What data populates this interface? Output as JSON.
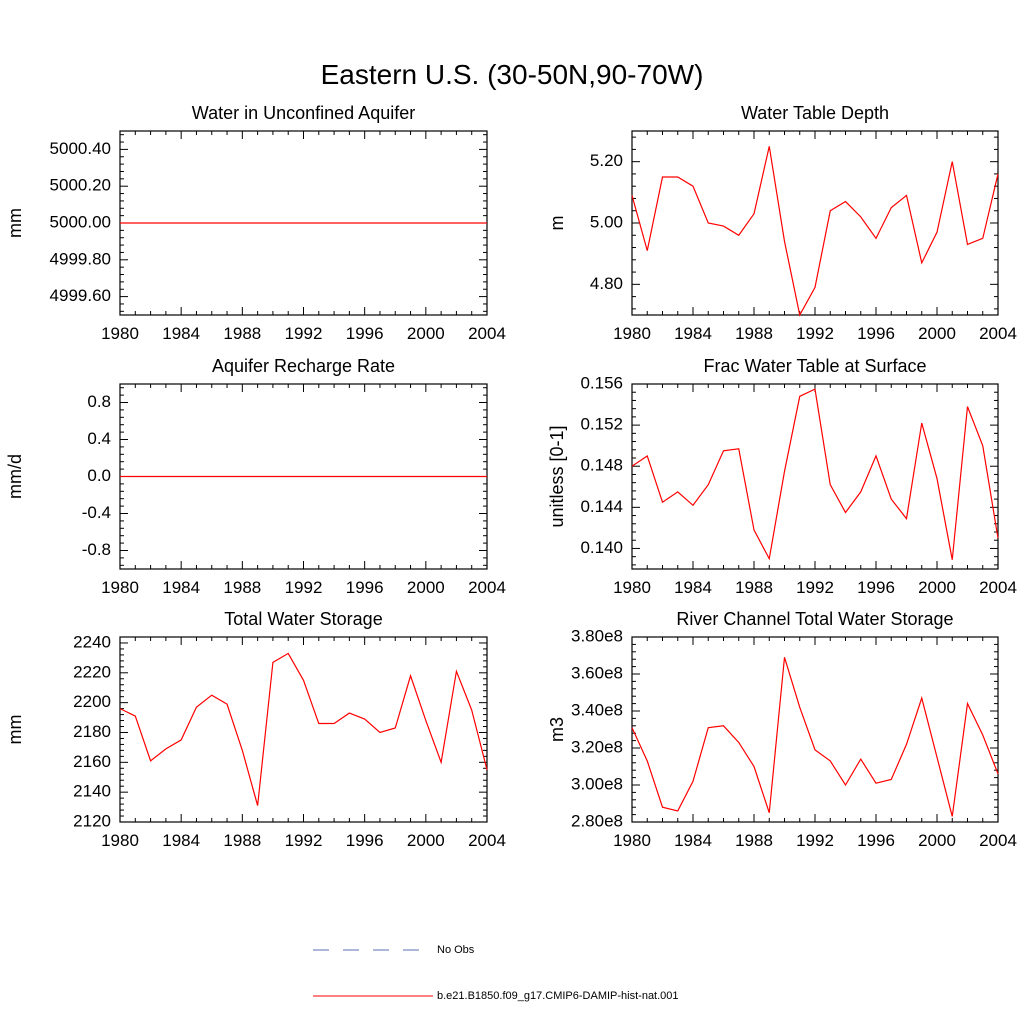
{
  "title": "Eastern U.S. (30-50N,90-70W)",
  "colors": {
    "model": "#ff0000",
    "obs": "#5b6fb5",
    "axis": "#000000"
  },
  "legend": {
    "items": [
      {
        "label": "No Obs",
        "style": "dashed",
        "color": "#5b6fb5"
      },
      {
        "label": "b.e21.B1850.f09_g17.CMIP6-DAMIP-hist-nat.001",
        "style": "solid",
        "color": "#ff0000"
      }
    ]
  },
  "chart_data": [
    {
      "type": "line",
      "title": "Water in Unconfined Aquifer",
      "ylabel": "mm",
      "xlim": [
        1980,
        2004
      ],
      "ylim": [
        4999.5,
        5000.5
      ],
      "xticks": [
        1980,
        1984,
        1988,
        1992,
        1996,
        2000,
        2004
      ],
      "xtick_labels": [
        "1980",
        "1984",
        "1988",
        "1992",
        "1996",
        "2000",
        "2004"
      ],
      "yticks": [
        4999.6,
        4999.8,
        5000.0,
        5000.2,
        5000.4
      ],
      "ytick_labels": [
        "4999.60",
        "4999.80",
        "5000.00",
        "5000.20",
        "5000.40"
      ],
      "series": [
        {
          "x": [
            1980,
            2004
          ],
          "values": [
            5000.0,
            5000.0
          ]
        }
      ]
    },
    {
      "type": "line",
      "title": "Water Table Depth",
      "ylabel": "m",
      "xlim": [
        1980,
        2004
      ],
      "ylim": [
        4.7,
        5.3
      ],
      "xticks": [
        1980,
        1984,
        1988,
        1992,
        1996,
        2000,
        2004
      ],
      "xtick_labels": [
        "1980",
        "1984",
        "1988",
        "1992",
        "1996",
        "2000",
        "2004"
      ],
      "yticks": [
        4.8,
        5.0,
        5.2
      ],
      "ytick_labels": [
        "4.80",
        "5.00",
        "5.20"
      ],
      "series": [
        {
          "x": [
            1980,
            1981,
            1982,
            1983,
            1984,
            1985,
            1986,
            1987,
            1988,
            1989,
            1990,
            1991,
            1992,
            1993,
            1994,
            1995,
            1996,
            1997,
            1998,
            1999,
            2000,
            2001,
            2002,
            2003,
            2004
          ],
          "values": [
            5.09,
            4.91,
            5.15,
            5.15,
            5.12,
            5.0,
            4.99,
            4.96,
            5.03,
            5.25,
            4.94,
            4.7,
            4.79,
            5.04,
            5.07,
            5.02,
            4.95,
            5.05,
            5.09,
            4.87,
            4.97,
            5.2,
            4.93,
            4.95,
            5.16
          ]
        }
      ]
    },
    {
      "type": "line",
      "title": "Aquifer Recharge Rate",
      "ylabel": "mm/d",
      "xlim": [
        1980,
        2004
      ],
      "ylim": [
        -1.0,
        1.0
      ],
      "xticks": [
        1980,
        1984,
        1988,
        1992,
        1996,
        2000,
        2004
      ],
      "xtick_labels": [
        "1980",
        "1984",
        "1988",
        "1992",
        "1996",
        "2000",
        "2004"
      ],
      "yticks": [
        -0.8,
        -0.4,
        0.0,
        0.4,
        0.8
      ],
      "ytick_labels": [
        "-0.8",
        "-0.4",
        "0.0",
        "0.4",
        "0.8"
      ],
      "series": [
        {
          "x": [
            1980,
            2004
          ],
          "values": [
            0.0,
            0.0
          ]
        }
      ]
    },
    {
      "type": "line",
      "title": "Frac Water Table at Surface",
      "ylabel": "unitless [0-1]",
      "xlim": [
        1980,
        2004
      ],
      "ylim": [
        0.138,
        0.156
      ],
      "xticks": [
        1980,
        1984,
        1988,
        1992,
        1996,
        2000,
        2004
      ],
      "xtick_labels": [
        "1980",
        "1984",
        "1988",
        "1992",
        "1996",
        "2000",
        "2004"
      ],
      "yticks": [
        0.14,
        0.144,
        0.148,
        0.152,
        0.156
      ],
      "ytick_labels": [
        "0.140",
        "0.144",
        "0.148",
        "0.152",
        "0.156"
      ],
      "series": [
        {
          "x": [
            1980,
            1981,
            1982,
            1983,
            1984,
            1985,
            1986,
            1987,
            1988,
            1989,
            1990,
            1991,
            1992,
            1993,
            1994,
            1995,
            1996,
            1997,
            1998,
            1999,
            2000,
            2001,
            2002,
            2003,
            2004
          ],
          "values": [
            0.148,
            0.149,
            0.1445,
            0.1455,
            0.1442,
            0.1462,
            0.1495,
            0.1497,
            0.1418,
            0.139,
            0.1475,
            0.1548,
            0.1555,
            0.1462,
            0.1435,
            0.1455,
            0.149,
            0.1448,
            0.1429,
            0.1522,
            0.1468,
            0.1389,
            0.1538,
            0.15,
            0.141
          ]
        }
      ]
    },
    {
      "type": "line",
      "title": "Total Water Storage",
      "ylabel": "mm",
      "xlim": [
        1980,
        2004
      ],
      "ylim": [
        2120,
        2244
      ],
      "xticks": [
        1980,
        1984,
        1988,
        1992,
        1996,
        2000,
        2004
      ],
      "xtick_labels": [
        "1980",
        "1984",
        "1988",
        "1992",
        "1996",
        "2000",
        "2004"
      ],
      "yticks": [
        2120,
        2140,
        2160,
        2180,
        2200,
        2220,
        2240
      ],
      "ytick_labels": [
        "2120",
        "2140",
        "2160",
        "2180",
        "2200",
        "2220",
        "2240"
      ],
      "series": [
        {
          "x": [
            1980,
            1981,
            1982,
            1983,
            1984,
            1985,
            1986,
            1987,
            1988,
            1989,
            1990,
            1991,
            1992,
            1993,
            1994,
            1995,
            1996,
            1997,
            1998,
            1999,
            2000,
            2001,
            2002,
            2003,
            2004
          ],
          "values": [
            2196,
            2191,
            2161,
            2169,
            2175,
            2197,
            2205,
            2199,
            2168,
            2131,
            2227,
            2233,
            2215,
            2186,
            2186,
            2193,
            2189,
            2180,
            2183,
            2218,
            2188,
            2160,
            2221,
            2195,
            2155
          ]
        }
      ]
    },
    {
      "type": "line",
      "title": "River Channel Total Water Storage",
      "ylabel": "m3",
      "xlim": [
        1980,
        2004
      ],
      "ylim": [
        280000000,
        380000000
      ],
      "xticks": [
        1980,
        1984,
        1988,
        1992,
        1996,
        2000,
        2004
      ],
      "xtick_labels": [
        "1980",
        "1984",
        "1988",
        "1992",
        "1996",
        "2000",
        "2004"
      ],
      "yticks": [
        280000000,
        300000000,
        320000000,
        340000000,
        360000000,
        380000000
      ],
      "ytick_labels": [
        "2.80e8",
        "3.00e8",
        "3.20e8",
        "3.40e8",
        "3.60e8",
        "3.80e8"
      ],
      "series": [
        {
          "x": [
            1980,
            1981,
            1982,
            1983,
            1984,
            1985,
            1986,
            1987,
            1988,
            1989,
            1990,
            1991,
            1992,
            1993,
            1994,
            1995,
            1996,
            1997,
            1998,
            1999,
            2000,
            2001,
            2002,
            2003,
            2004
          ],
          "values": [
            331000000,
            313000000,
            288000000,
            286000000,
            302000000,
            331000000,
            332000000,
            323000000,
            310000000,
            285000000,
            369000000,
            342000000,
            319000000,
            313000000,
            300000000,
            314000000,
            301000000,
            303000000,
            322000000,
            347000000,
            315000000,
            283000000,
            344000000,
            327000000,
            306000000
          ]
        }
      ]
    }
  ]
}
